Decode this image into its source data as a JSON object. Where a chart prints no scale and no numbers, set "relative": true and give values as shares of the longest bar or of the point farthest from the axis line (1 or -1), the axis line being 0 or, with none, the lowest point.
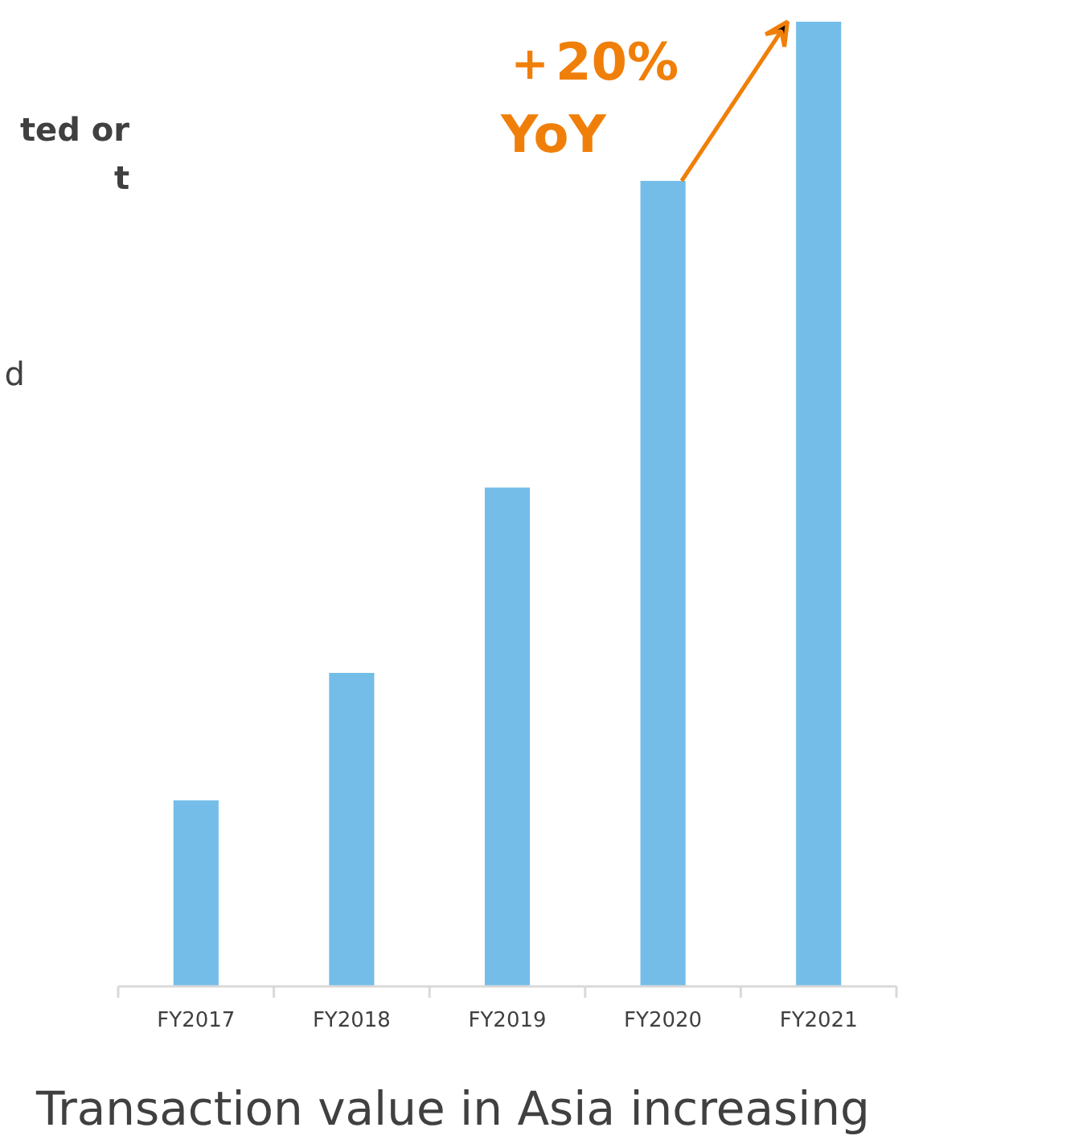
{
  "chart_data": {
    "type": "bar",
    "relative": true,
    "title": "Transaction value in Asia increasing",
    "categories": [
      "FY2017",
      "FY2018",
      "FY2019",
      "FY2020",
      "FY2021"
    ],
    "values": [
      0.193,
      0.325,
      0.517,
      0.835,
      1.0
    ],
    "color": "#74bde8",
    "annotations": [
      "＋20%",
      "YoY",
      "ted or",
      "t",
      "d"
    ],
    "grid": false
  }
}
